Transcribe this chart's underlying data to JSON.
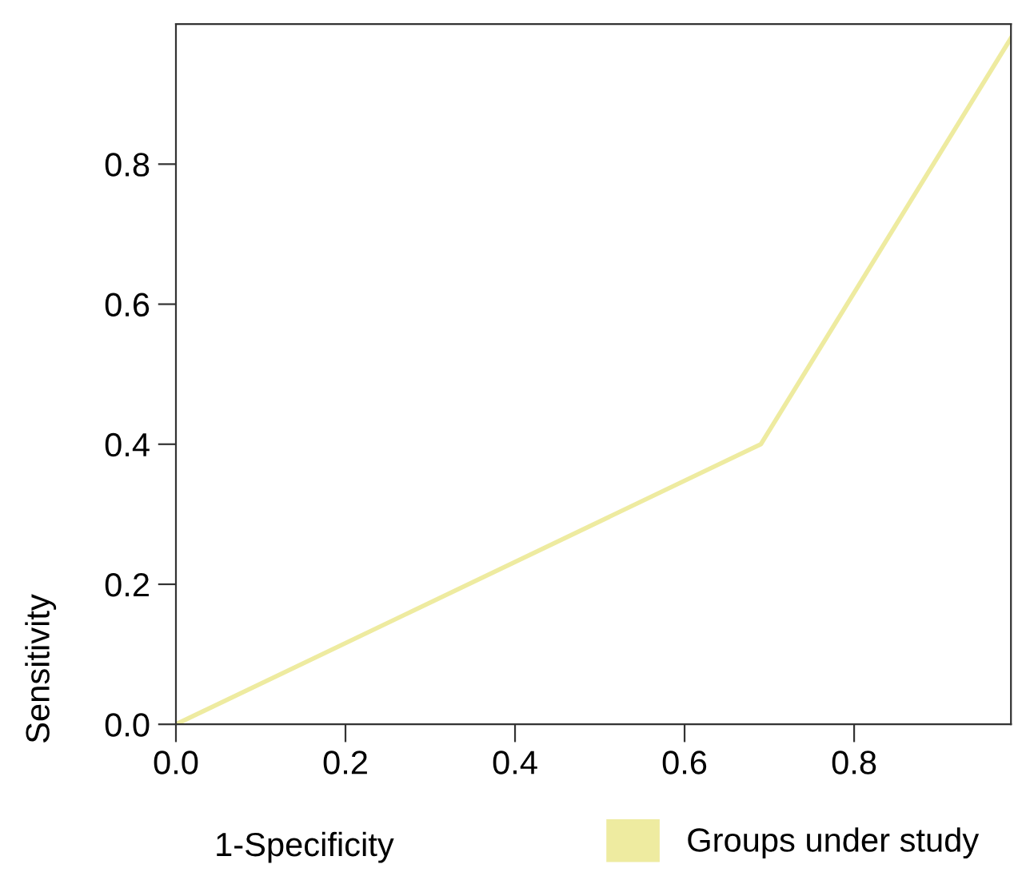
{
  "chart_data": {
    "type": "line",
    "xlabel": "1-Specificity",
    "ylabel": "Sensitivity",
    "series": [
      {
        "name": "Groups under study",
        "color": "#eeeba0",
        "x": [
          0,
          0.69,
          0.985
        ],
        "values": [
          0,
          0.4,
          0.98
        ]
      }
    ],
    "xlim": [
      0,
      0.985
    ],
    "ylim": [
      0,
      1
    ],
    "xticks": [
      {
        "value": 0,
        "label": "0.0"
      },
      0.2,
      0.4,
      0.6,
      0.8
    ],
    "yticks": [
      {
        "value": 0,
        "label": "0.0"
      },
      0.2,
      0.4,
      0.6,
      0.8
    ],
    "legend": "bottom right",
    "grid": false,
    "marker": "none",
    "line_style": "solid"
  }
}
